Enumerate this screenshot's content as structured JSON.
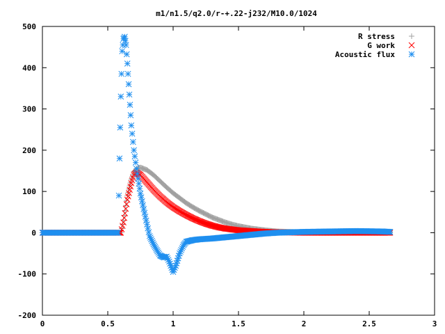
{
  "chart_data": {
    "type": "scatter",
    "title": "m1/n1.5/q2.0/r-+.22-j232/M10.0/1024",
    "xlabel": "",
    "ylabel": "",
    "xlim": [
      0,
      3
    ],
    "ylim": [
      -200,
      500
    ],
    "x_ticks": [
      "0",
      "0.5",
      "1",
      "1.5",
      "2",
      "2.5",
      "3"
    ],
    "y_ticks": [
      "500",
      "400",
      "300",
      "200",
      "100",
      "0",
      "-100",
      "-200"
    ],
    "grid": false,
    "legend_position": "top-right",
    "series": [
      {
        "name": "R stress",
        "marker": "+",
        "color": "#a0a0a0",
        "points": [
          [
            0.0,
            0
          ],
          [
            0.6,
            0
          ],
          [
            0.62,
            30
          ],
          [
            0.65,
            90
          ],
          [
            0.68,
            130
          ],
          [
            0.7,
            148
          ],
          [
            0.73,
            157
          ],
          [
            0.75,
            158
          ],
          [
            0.8,
            152
          ],
          [
            0.85,
            140
          ],
          [
            0.9,
            125
          ],
          [
            0.95,
            110
          ],
          [
            1.0,
            96
          ],
          [
            1.05,
            84
          ],
          [
            1.1,
            72
          ],
          [
            1.15,
            62
          ],
          [
            1.2,
            53
          ],
          [
            1.25,
            45
          ],
          [
            1.3,
            37
          ],
          [
            1.35,
            31
          ],
          [
            1.4,
            25
          ],
          [
            1.45,
            20
          ],
          [
            1.5,
            16
          ],
          [
            1.6,
            10
          ],
          [
            1.7,
            6
          ],
          [
            1.8,
            3
          ],
          [
            1.9,
            2
          ],
          [
            2.0,
            1
          ],
          [
            2.2,
            0.5
          ],
          [
            2.4,
            0.3
          ],
          [
            2.66,
            0
          ]
        ]
      },
      {
        "name": "G work",
        "marker": "x",
        "color": "#ff0000",
        "points": [
          [
            0.0,
            0
          ],
          [
            0.6,
            0
          ],
          [
            0.62,
            25
          ],
          [
            0.65,
            80
          ],
          [
            0.68,
            120
          ],
          [
            0.7,
            140
          ],
          [
            0.72,
            146
          ],
          [
            0.75,
            140
          ],
          [
            0.8,
            122
          ],
          [
            0.85,
            104
          ],
          [
            0.9,
            88
          ],
          [
            0.95,
            74
          ],
          [
            1.0,
            62
          ],
          [
            1.05,
            52
          ],
          [
            1.1,
            43
          ],
          [
            1.15,
            35
          ],
          [
            1.2,
            28
          ],
          [
            1.25,
            22
          ],
          [
            1.3,
            17
          ],
          [
            1.35,
            13
          ],
          [
            1.4,
            10
          ],
          [
            1.5,
            6
          ],
          [
            1.6,
            4
          ],
          [
            1.7,
            2
          ],
          [
            1.8,
            1
          ],
          [
            2.0,
            0
          ],
          [
            2.3,
            0
          ],
          [
            2.66,
            0
          ]
        ]
      },
      {
        "name": "Acoustic flux",
        "marker": "*",
        "color": "#1f8fef",
        "points": [
          [
            0.0,
            0
          ],
          [
            0.3,
            0
          ],
          [
            0.58,
            0
          ],
          [
            0.59,
            180
          ],
          [
            0.6,
            330
          ],
          [
            0.61,
            440
          ],
          [
            0.62,
            470
          ],
          [
            0.63,
            475
          ],
          [
            0.64,
            455
          ],
          [
            0.65,
            410
          ],
          [
            0.66,
            360
          ],
          [
            0.67,
            310
          ],
          [
            0.68,
            260
          ],
          [
            0.7,
            200
          ],
          [
            0.72,
            155
          ],
          [
            0.75,
            95
          ],
          [
            0.8,
            20
          ],
          [
            0.82,
            -8
          ],
          [
            0.85,
            -28
          ],
          [
            0.88,
            -45
          ],
          [
            0.9,
            -55
          ],
          [
            0.93,
            -60
          ],
          [
            0.95,
            -58
          ],
          [
            0.97,
            -70
          ],
          [
            1.0,
            -95
          ],
          [
            1.02,
            -80
          ],
          [
            1.05,
            -50
          ],
          [
            1.08,
            -30
          ],
          [
            1.1,
            -22
          ],
          [
            1.15,
            -18
          ],
          [
            1.2,
            -16
          ],
          [
            1.3,
            -14
          ],
          [
            1.4,
            -11
          ],
          [
            1.5,
            -8
          ],
          [
            1.6,
            -5
          ],
          [
            1.7,
            -2
          ],
          [
            1.8,
            0
          ],
          [
            1.9,
            1
          ],
          [
            2.0,
            2
          ],
          [
            2.2,
            3
          ],
          [
            2.4,
            4
          ],
          [
            2.6,
            3
          ],
          [
            2.66,
            2
          ]
        ]
      }
    ]
  }
}
